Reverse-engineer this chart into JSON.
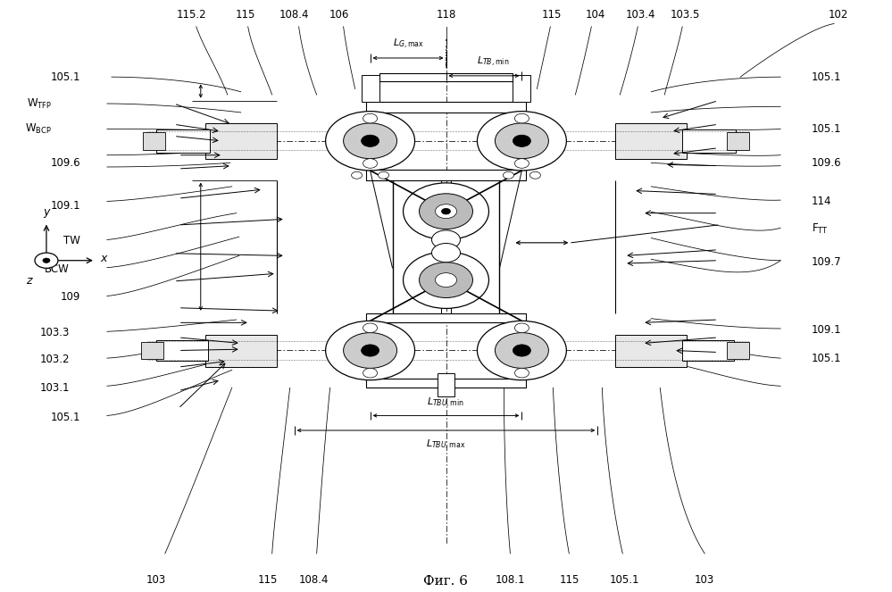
{
  "title": "Фиг. 6",
  "bg_color": "#ffffff",
  "fig_w": 9.99,
  "fig_h": 6.63,
  "dpi": 100,
  "top_labels": [
    {
      "text": "115.2",
      "xf": 0.215,
      "yf": 0.965
    },
    {
      "text": "115",
      "xf": 0.275,
      "yf": 0.965
    },
    {
      "text": "108.4",
      "xf": 0.33,
      "yf": 0.965
    },
    {
      "text": "106",
      "xf": 0.38,
      "yf": 0.965
    },
    {
      "text": "118",
      "xf": 0.5,
      "yf": 0.965
    },
    {
      "text": "115",
      "xf": 0.618,
      "yf": 0.965
    },
    {
      "text": "104",
      "xf": 0.668,
      "yf": 0.965
    },
    {
      "text": "103.4",
      "xf": 0.718,
      "yf": 0.965
    },
    {
      "text": "103.5",
      "xf": 0.768,
      "yf": 0.965
    },
    {
      "text": "102",
      "xf": 0.94,
      "yf": 0.965
    }
  ],
  "bottom_labels": [
    {
      "text": "103",
      "xf": 0.175,
      "yf": 0.03
    },
    {
      "text": "115",
      "xf": 0.3,
      "yf": 0.03
    },
    {
      "text": "108.4",
      "xf": 0.352,
      "yf": 0.03
    },
    {
      "text": "108.1",
      "xf": 0.572,
      "yf": 0.03
    },
    {
      "text": "115",
      "xf": 0.638,
      "yf": 0.03
    },
    {
      "text": "105.1",
      "xf": 0.7,
      "yf": 0.03
    },
    {
      "text": "103",
      "xf": 0.79,
      "yf": 0.03
    }
  ],
  "left_labels": [
    {
      "text": "105.1",
      "xf": 0.09,
      "yf": 0.87
    },
    {
      "text": "W_TFP",
      "xf": 0.058,
      "yf": 0.825,
      "latex": "W$_{\\mathrm{TFP}}$"
    },
    {
      "text": "W_BCP",
      "xf": 0.058,
      "yf": 0.782,
      "latex": "W$_{\\mathrm{BCP}}$"
    },
    {
      "text": "109.6",
      "xf": 0.09,
      "yf": 0.725
    },
    {
      "text": "109.1",
      "xf": 0.09,
      "yf": 0.652
    },
    {
      "text": "TW",
      "xf": 0.09,
      "yf": 0.593
    },
    {
      "text": "BCW",
      "xf": 0.078,
      "yf": 0.545
    },
    {
      "text": "109",
      "xf": 0.09,
      "yf": 0.498
    },
    {
      "text": "103.3",
      "xf": 0.078,
      "yf": 0.438
    },
    {
      "text": "103.2",
      "xf": 0.078,
      "yf": 0.393
    },
    {
      "text": "103.1",
      "xf": 0.078,
      "yf": 0.345
    },
    {
      "text": "105.1",
      "xf": 0.09,
      "yf": 0.295
    }
  ],
  "right_labels": [
    {
      "text": "105.1",
      "xf": 0.91,
      "yf": 0.87
    },
    {
      "text": "105.1",
      "xf": 0.91,
      "yf": 0.782
    },
    {
      "text": "109.6",
      "xf": 0.91,
      "yf": 0.725
    },
    {
      "text": "114",
      "xf": 0.91,
      "yf": 0.66
    },
    {
      "text": "F_TT",
      "xf": 0.91,
      "yf": 0.613,
      "latex": "F$_{\\mathrm{TT}}$"
    },
    {
      "text": "109.7",
      "xf": 0.91,
      "yf": 0.558
    },
    {
      "text": "109.1",
      "xf": 0.91,
      "yf": 0.443
    },
    {
      "text": "105.1",
      "xf": 0.91,
      "yf": 0.395
    }
  ],
  "label_fs": 8.5,
  "title_fs": 11
}
